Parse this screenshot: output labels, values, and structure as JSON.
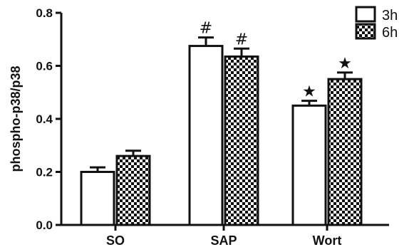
{
  "chart_data": {
    "type": "bar",
    "title": "",
    "xlabel": "",
    "ylabel": "phospho-p38/p38",
    "ylim": [
      0.0,
      0.8
    ],
    "yticks": [
      "0.0",
      "0.2",
      "0.4",
      "0.6",
      "0.8"
    ],
    "categories": [
      "SO",
      "SAP",
      "Wort"
    ],
    "legend_position": "top-right",
    "grid": false,
    "series": [
      {
        "name": "3h",
        "fill": "white",
        "values": [
          0.2,
          0.675,
          0.45
        ],
        "errors": [
          0.017,
          0.032,
          0.018
        ],
        "annotations": [
          "",
          "#",
          "★"
        ]
      },
      {
        "name": "6h",
        "fill": "checkered",
        "values": [
          0.26,
          0.635,
          0.55
        ],
        "errors": [
          0.02,
          0.03,
          0.025
        ],
        "annotations": [
          "",
          "#",
          "★"
        ]
      }
    ]
  }
}
